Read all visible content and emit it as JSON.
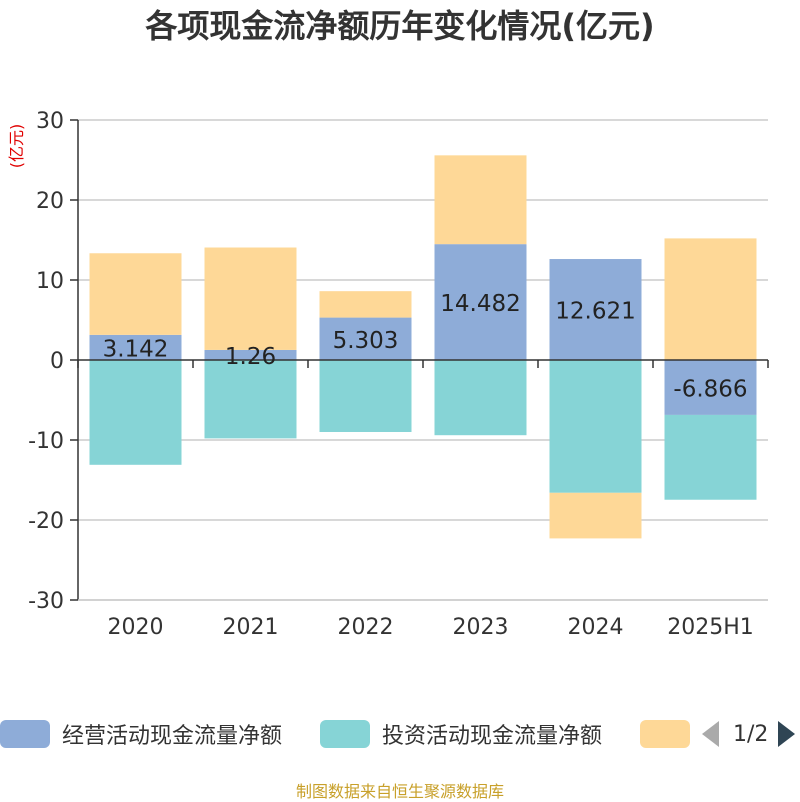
{
  "title": "各项现金流净额历年变化情况(亿元)",
  "source": "制图数据来自恒生聚源数据库",
  "pager": "1/2",
  "colors": {
    "operating": "#8eacd8",
    "investing": "#86d4d6",
    "financing": "#fed897",
    "grid": "#cccccc",
    "axis": "#333333",
    "unit": "#e00000"
  },
  "chart_data": {
    "type": "bar",
    "stacked": true,
    "title": "各项现金流净额历年变化情况(亿元)",
    "ylabel": "(亿元)",
    "ylim": [
      -30,
      30
    ],
    "yticks": [
      30,
      20,
      10,
      0,
      -10,
      -20,
      -30
    ],
    "grid": true,
    "legend_position": "bottom",
    "categories": [
      "2020",
      "2021",
      "2022",
      "2023",
      "2024",
      "2025H1"
    ],
    "series": [
      {
        "name": "经营活动现金流量净额",
        "values": [
          3.142,
          1.26,
          5.303,
          14.482,
          12.621,
          -6.866
        ],
        "labels": [
          "3.142",
          "1.26",
          "5.303",
          "14.482",
          "12.621",
          "-6.866"
        ]
      },
      {
        "name": "投资活动现金流量净额",
        "values": [
          -13.1,
          -9.8,
          -9.0,
          -9.4,
          -16.6,
          -10.6
        ]
      },
      {
        "name": "",
        "values": [
          10.2,
          12.8,
          3.3,
          11.1,
          -5.7,
          15.2
        ]
      }
    ]
  }
}
